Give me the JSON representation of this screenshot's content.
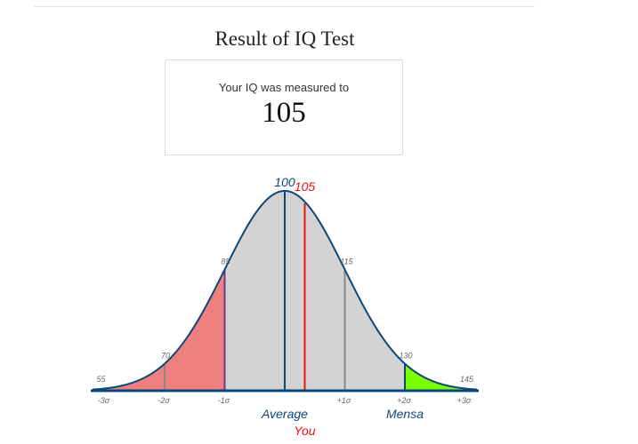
{
  "page": {
    "title": "Result of IQ Test"
  },
  "result": {
    "label": "Your IQ was measured to",
    "value": "105"
  },
  "colors": {
    "curve": "#0b4779",
    "fill_gray": "#d3d3d3",
    "low_region": "#f08080",
    "mensa_region": "#7cfc00",
    "you": "#ee1111",
    "average": "#0b4779",
    "sigma_line": "#888888",
    "minus_one_line": "#6a3a8a"
  },
  "chart_data": {
    "type": "area",
    "distribution": "normal",
    "mean": 100,
    "sd": 15,
    "x_range": [
      52,
      148
    ],
    "ticks": [
      {
        "value": 55,
        "label": "55",
        "sigma": "-3σ"
      },
      {
        "value": 70,
        "label": "70",
        "sigma": "-2σ"
      },
      {
        "value": 85,
        "label": "85",
        "sigma": "-1σ"
      },
      {
        "value": 100,
        "label": "100",
        "sigma": ""
      },
      {
        "value": 115,
        "label": "115",
        "sigma": "+1σ"
      },
      {
        "value": 130,
        "label": "130",
        "sigma": "+2σ"
      },
      {
        "value": 145,
        "label": "145",
        "sigma": "+3σ"
      }
    ],
    "regions": [
      {
        "from": 52,
        "to": 85,
        "color": "#f08080"
      },
      {
        "from": 130,
        "to": 148,
        "color": "#7cfc00"
      }
    ],
    "markers": {
      "average": {
        "value": 100,
        "label": "100",
        "caption": "Average"
      },
      "you": {
        "value": 105,
        "label": "105",
        "caption": "You"
      },
      "mensa": {
        "value": 130,
        "caption": "Mensa"
      }
    }
  }
}
